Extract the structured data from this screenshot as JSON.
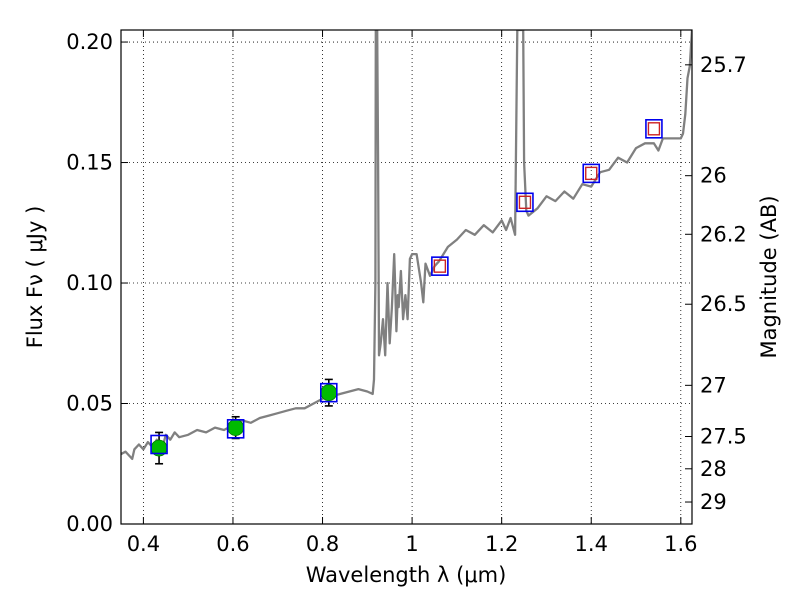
{
  "chart_data": {
    "type": "line",
    "xlabel": "Wavelength  λ (μm)",
    "ylabel": "Flux  Fν  ( μJy )",
    "ylabel_right": "Magnitude (AB)",
    "xlim": [
      0.35,
      1.625
    ],
    "ylim": [
      0.0,
      0.205
    ],
    "grid": true,
    "x_ticks": [
      {
        "value": 0.4,
        "label": "0.4"
      },
      {
        "value": 0.6,
        "label": "0.6"
      },
      {
        "value": 0.8,
        "label": "0.8"
      },
      {
        "value": 1.0,
        "label": "1"
      },
      {
        "value": 1.2,
        "label": "1.2"
      },
      {
        "value": 1.4,
        "label": "1.4"
      },
      {
        "value": 1.6,
        "label": "1.6"
      }
    ],
    "y_ticks": [
      {
        "value": 0.0,
        "label": "0.00"
      },
      {
        "value": 0.05,
        "label": "0.05"
      },
      {
        "value": 0.1,
        "label": "0.10"
      },
      {
        "value": 0.15,
        "label": "0.15"
      },
      {
        "value": 0.2,
        "label": "0.20"
      }
    ],
    "mag_ticks": [
      {
        "value": 25.7,
        "label": "25.7"
      },
      {
        "value": 26,
        "label": "26"
      },
      {
        "value": 26.2,
        "label": "26.2"
      },
      {
        "value": 26.5,
        "label": "26.5"
      },
      {
        "value": 27,
        "label": "27"
      },
      {
        "value": 27.5,
        "label": "27.5"
      },
      {
        "value": 28,
        "label": "28"
      },
      {
        "value": 29,
        "label": "29"
      }
    ],
    "series": [
      {
        "kind": "model-spectrum",
        "color": "#808080",
        "x": [
          0.35,
          0.36,
          0.37,
          0.375,
          0.38,
          0.39,
          0.4,
          0.41,
          0.42,
          0.43,
          0.44,
          0.45,
          0.46,
          0.47,
          0.48,
          0.5,
          0.52,
          0.54,
          0.56,
          0.58,
          0.6,
          0.62,
          0.64,
          0.66,
          0.68,
          0.7,
          0.72,
          0.74,
          0.76,
          0.78,
          0.8,
          0.82,
          0.84,
          0.86,
          0.88,
          0.9,
          0.912,
          0.915,
          0.918,
          0.919,
          0.922,
          0.924,
          0.926,
          0.93,
          0.935,
          0.94,
          0.945,
          0.95,
          0.955,
          0.96,
          0.962,
          0.965,
          0.968,
          0.97,
          0.975,
          0.98,
          0.985,
          0.99,
          0.995,
          1.0,
          1.01,
          1.02,
          1.025,
          1.03,
          1.04,
          1.05,
          1.06,
          1.08,
          1.1,
          1.12,
          1.14,
          1.16,
          1.18,
          1.2,
          1.21,
          1.22,
          1.23,
          1.235,
          1.238,
          1.24,
          1.244,
          1.248,
          1.25,
          1.255,
          1.26,
          1.28,
          1.3,
          1.32,
          1.34,
          1.36,
          1.38,
          1.4,
          1.42,
          1.44,
          1.46,
          1.48,
          1.5,
          1.52,
          1.54,
          1.55,
          1.56,
          1.58,
          1.6,
          1.605,
          1.61,
          1.615,
          1.62,
          1.625
        ],
        "y": [
          0.029,
          0.03,
          0.028,
          0.027,
          0.031,
          0.033,
          0.031,
          0.034,
          0.032,
          0.035,
          0.03,
          0.037,
          0.035,
          0.038,
          0.036,
          0.037,
          0.039,
          0.038,
          0.04,
          0.039,
          0.041,
          0.043,
          0.042,
          0.044,
          0.045,
          0.046,
          0.047,
          0.048,
          0.048,
          0.05,
          0.052,
          0.053,
          0.054,
          0.055,
          0.056,
          0.055,
          0.054,
          0.06,
          0.1,
          0.205,
          0.205,
          0.15,
          0.07,
          0.075,
          0.085,
          0.07,
          0.1,
          0.075,
          0.09,
          0.112,
          0.1,
          0.08,
          0.095,
          0.09,
          0.105,
          0.085,
          0.095,
          0.085,
          0.11,
          0.112,
          0.112,
          0.1,
          0.092,
          0.108,
          0.103,
          0.107,
          0.109,
          0.115,
          0.118,
          0.122,
          0.12,
          0.124,
          0.121,
          0.126,
          0.122,
          0.127,
          0.12,
          0.205,
          0.205,
          0.205,
          0.205,
          0.205,
          0.15,
          0.13,
          0.128,
          0.131,
          0.136,
          0.134,
          0.138,
          0.135,
          0.141,
          0.14,
          0.146,
          0.147,
          0.152,
          0.15,
          0.156,
          0.158,
          0.158,
          0.155,
          0.16,
          0.16,
          0.16,
          0.162,
          0.17,
          0.185,
          0.19,
          0.205
        ]
      },
      {
        "kind": "observed-photometry",
        "marker": "circle",
        "color": "#00bb00",
        "x": [
          0.435,
          0.606,
          0.814
        ],
        "y": [
          0.0315,
          0.04,
          0.0545
        ],
        "yerr": [
          0.0065,
          0.0045,
          0.0055
        ]
      },
      {
        "kind": "model-photometry",
        "marker": "square",
        "color": "#0000ee",
        "x": [
          0.435,
          0.606,
          0.814,
          1.062,
          1.252,
          1.4,
          1.54
        ],
        "y": [
          0.033,
          0.0395,
          0.0545,
          0.107,
          0.1335,
          0.1455,
          0.164
        ]
      },
      {
        "kind": "upper-limits",
        "marker": "square",
        "color": "#cc2222",
        "x": [
          1.062,
          1.252,
          1.4,
          1.54
        ],
        "y": [
          0.107,
          0.1335,
          0.1455,
          0.164
        ]
      }
    ]
  }
}
